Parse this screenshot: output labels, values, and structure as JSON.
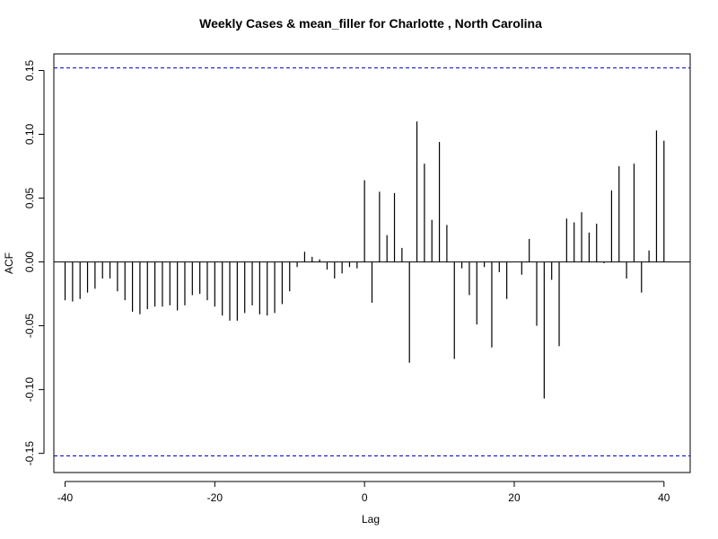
{
  "chart_data": {
    "type": "bar",
    "title": "Weekly Cases & mean_filler for Charlotte , North Carolina",
    "xlabel": "Lag",
    "ylabel": "ACF",
    "xlim": [
      -41.5,
      43.5
    ],
    "ylim": [
      -0.165,
      0.163
    ],
    "x_ticks": [
      -40,
      -20,
      0,
      20,
      40
    ],
    "y_ticks": [
      -0.15,
      -0.1,
      -0.05,
      0.0,
      0.05,
      0.1,
      0.15
    ],
    "y_tick_labels": [
      "-0.15",
      "-0.10",
      "-0.05",
      "0.00",
      "0.05",
      "0.10",
      "0.15"
    ],
    "confidence_band": 0.152,
    "line_color": "#000000",
    "band_color": "#0000cc",
    "lags": [
      -40,
      -39,
      -38,
      -37,
      -36,
      -35,
      -34,
      -33,
      -32,
      -31,
      -30,
      -29,
      -28,
      -27,
      -26,
      -25,
      -24,
      -23,
      -22,
      -21,
      -20,
      -19,
      -18,
      -17,
      -16,
      -15,
      -14,
      -13,
      -12,
      -11,
      -10,
      -9,
      -8,
      -7,
      -6,
      -5,
      -4,
      -3,
      -2,
      -1,
      0,
      1,
      2,
      3,
      4,
      5,
      6,
      7,
      8,
      9,
      10,
      11,
      12,
      13,
      14,
      15,
      16,
      17,
      18,
      19,
      20,
      21,
      22,
      23,
      24,
      25,
      26,
      27,
      28,
      29,
      30,
      31,
      32,
      33,
      34,
      35,
      36,
      37,
      38,
      39,
      40
    ],
    "values": [
      -0.03,
      -0.031,
      -0.029,
      -0.024,
      -0.021,
      -0.013,
      -0.013,
      -0.023,
      -0.03,
      -0.039,
      -0.041,
      -0.037,
      -0.035,
      -0.035,
      -0.034,
      -0.038,
      -0.034,
      -0.026,
      -0.025,
      -0.03,
      -0.035,
      -0.042,
      -0.046,
      -0.046,
      -0.04,
      -0.034,
      -0.041,
      -0.042,
      -0.04,
      -0.033,
      -0.023,
      -0.004,
      0.008,
      0.004,
      0.002,
      -0.006,
      -0.013,
      -0.009,
      -0.004,
      -0.005,
      0.064,
      -0.032,
      0.055,
      0.021,
      0.054,
      0.011,
      -0.079,
      0.11,
      0.077,
      0.033,
      0.094,
      0.029,
      -0.076,
      -0.005,
      -0.026,
      -0.049,
      -0.004,
      -0.067,
      -0.008,
      -0.029,
      0.0,
      -0.01,
      0.018,
      -0.05,
      -0.107,
      -0.014,
      -0.066,
      0.034,
      0.031,
      0.039,
      0.023,
      0.03,
      -0.001,
      0.056,
      0.075,
      -0.013,
      0.077,
      -0.024,
      0.009,
      0.103,
      0.095
    ]
  }
}
